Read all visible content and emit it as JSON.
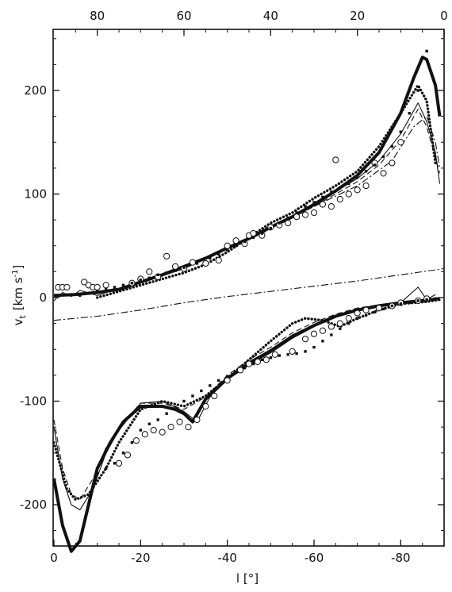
{
  "chart_data": {
    "type": "line",
    "title": "",
    "xlabel": "l [°]",
    "ylabel": "vt [km s-1]",
    "ylabel_main": "v",
    "ylabel_sub": "t",
    "ylabel_unit": "[km s",
    "ylabel_exp": "-1",
    "ylabel_close": "]",
    "xlim": [
      0,
      -90
    ],
    "ylim": [
      -240,
      250
    ],
    "top_xlim": [
      90,
      0
    ],
    "x_ticks": [
      0,
      -20,
      -40,
      -60,
      -80
    ],
    "x_tick_labels": [
      "0",
      "-20",
      "-40",
      "-60",
      "-80"
    ],
    "top_x_ticks": [
      80,
      60,
      40,
      20,
      0
    ],
    "top_x_tick_labels": [
      "80",
      "60",
      "40",
      "20",
      "0"
    ],
    "y_ticks": [
      200,
      100,
      0,
      -100,
      -200
    ],
    "y_tick_labels": [
      "200",
      "100",
      "0",
      "-100",
      "-200"
    ],
    "grid": false,
    "legend": "none",
    "series": [
      {
        "style": "thick-solid",
        "part": "upper",
        "x": [
          0,
          -5,
          -10,
          -15,
          -20,
          -25,
          -30,
          -35,
          -40,
          -45,
          -50,
          -55,
          -60,
          -65,
          -70,
          -75,
          -80,
          -83,
          -85,
          -86,
          -88,
          -89
        ],
        "y": [
          2,
          3,
          5,
          8,
          15,
          22,
          30,
          38,
          48,
          57,
          68,
          78,
          90,
          103,
          118,
          140,
          178,
          212,
          232,
          230,
          205,
          175
        ]
      },
      {
        "style": "thin-solid",
        "part": "upper",
        "x": [
          0,
          -2,
          -4,
          -6,
          -10,
          -15,
          -20,
          -30,
          -40,
          -50,
          -60,
          -70,
          -75,
          -80,
          -84,
          -86,
          -88,
          -89
        ],
        "y": [
          -3,
          5,
          1,
          7,
          2,
          9,
          14,
          28,
          47,
          67,
          90,
          115,
          132,
          158,
          188,
          170,
          140,
          110
        ]
      },
      {
        "style": "dotted",
        "part": "upper",
        "x": [
          -10,
          -15,
          -20,
          -25,
          -30,
          -35,
          -40,
          -45,
          -50,
          -55,
          -60,
          -65,
          -70,
          -75,
          -80,
          -84,
          -86,
          -88
        ],
        "y": [
          0,
          6,
          12,
          18,
          24,
          32,
          44,
          58,
          72,
          82,
          96,
          108,
          122,
          146,
          178,
          205,
          190,
          130
        ]
      },
      {
        "style": "thin-dashed",
        "part": "upper",
        "x": [
          0,
          -10,
          -20,
          -30,
          -40,
          -50,
          -60,
          -70,
          -75,
          -80,
          -84,
          -86,
          -88,
          -89
        ],
        "y": [
          2,
          4,
          14,
          28,
          47,
          66,
          88,
          112,
          128,
          152,
          182,
          165,
          135,
          120
        ]
      },
      {
        "style": "dash-dot",
        "part": "reference",
        "x": [
          0,
          -10,
          -20,
          -30,
          -40,
          -50,
          -60,
          -70,
          -80,
          -90
        ],
        "y": [
          -22,
          -18,
          -12,
          -5,
          1,
          6,
          11,
          16,
          22,
          28
        ]
      },
      {
        "style": "dash-dot",
        "part": "upper-peak",
        "x": [
          -60,
          -70,
          -78,
          -83,
          -86,
          -88,
          -89
        ],
        "y": [
          88,
          108,
          132,
          165,
          175,
          150,
          125
        ]
      },
      {
        "style": "thick-solid",
        "part": "lower",
        "x": [
          0,
          -2,
          -4,
          -6,
          -8,
          -10,
          -13,
          -16,
          -20,
          -25,
          -28,
          -30,
          -32,
          -35,
          -40,
          -45,
          -50,
          -55,
          -60,
          -65,
          -70,
          -75,
          -80,
          -85,
          -89
        ],
        "y": [
          -175,
          -220,
          -245,
          -235,
          -200,
          -165,
          -140,
          -120,
          -105,
          -105,
          -108,
          -112,
          -120,
          -98,
          -78,
          -64,
          -52,
          -38,
          -27,
          -18,
          -12,
          -8,
          -5,
          -3,
          -1
        ]
      },
      {
        "style": "thin-solid",
        "part": "lower",
        "x": [
          0,
          -2,
          -4,
          -6,
          -9,
          -12,
          -15,
          -20,
          -25,
          -30,
          -33,
          -36,
          -40,
          -45,
          -50,
          -55,
          -60,
          -65,
          -70,
          -75,
          -80,
          -84,
          -86,
          -88
        ],
        "y": [
          -125,
          -175,
          -200,
          -205,
          -185,
          -150,
          -128,
          -102,
          -100,
          -110,
          -120,
          -96,
          -77,
          -62,
          -50,
          -36,
          -26,
          -17,
          -11,
          -7,
          -5,
          10,
          -2,
          3
        ]
      },
      {
        "style": "thin-dashed",
        "part": "lower",
        "x": [
          0,
          -2,
          -4,
          -6,
          -9,
          -12,
          -15,
          -20,
          -25,
          -30,
          -35,
          -40,
          -45,
          -50,
          -55,
          -60,
          -65,
          -70,
          -80,
          -89
        ],
        "y": [
          -118,
          -165,
          -190,
          -195,
          -175,
          -145,
          -125,
          -102,
          -102,
          -108,
          -96,
          -75,
          -60,
          -48,
          -34,
          -24,
          -16,
          -10,
          -4,
          -1
        ]
      },
      {
        "style": "dotted",
        "part": "lower",
        "x": [
          0,
          -3,
          -5,
          -8,
          -12,
          -15,
          -20,
          -25,
          -30,
          -35,
          -40,
          -45,
          -50,
          -55,
          -58,
          -62,
          -66,
          -70,
          -75,
          -80,
          -86,
          -89
        ],
        "y": [
          -140,
          -185,
          -195,
          -190,
          -165,
          -140,
          -108,
          -100,
          -105,
          -95,
          -78,
          -60,
          -42,
          -25,
          -20,
          -22,
          -28,
          -20,
          -12,
          -6,
          -4,
          -2
        ]
      },
      {
        "style": "open-circles",
        "part": "upper",
        "x": [
          -1,
          -2,
          -3,
          -7,
          -8,
          -9,
          -10,
          -12,
          -18,
          -20,
          -22,
          -24,
          -26,
          -28,
          -30,
          -32,
          -35,
          -38,
          -40,
          -42,
          -44,
          -45,
          -46,
          -48,
          -50,
          -52,
          -54,
          -56,
          -58,
          -60,
          -62,
          -64,
          -65,
          -66,
          -68,
          -70,
          -72,
          -74,
          -76,
          -78,
          -80
        ],
        "y": [
          10,
          10,
          10,
          15,
          12,
          10,
          10,
          12,
          14,
          18,
          25,
          20,
          40,
          30,
          28,
          34,
          33,
          36,
          50,
          55,
          52,
          60,
          62,
          60,
          68,
          70,
          72,
          78,
          80,
          82,
          90,
          88,
          133,
          95,
          100,
          104,
          108,
          130,
          120,
          130,
          150
        ]
      },
      {
        "style": "open-circles",
        "part": "lower",
        "x": [
          -15,
          -17,
          -19,
          -21,
          -23,
          -25,
          -27,
          -29,
          -31,
          -33,
          -35,
          -37,
          -40,
          -43,
          -45,
          -47,
          -49,
          -51,
          -55,
          -58,
          -60,
          -62,
          -64,
          -66,
          -68,
          -70,
          -72,
          -75,
          -78,
          -80,
          -84,
          -86
        ],
        "y": [
          -160,
          -152,
          -138,
          -132,
          -128,
          -130,
          -125,
          -120,
          -125,
          -118,
          -105,
          -95,
          -80,
          -70,
          -64,
          -62,
          -60,
          -55,
          -52,
          -40,
          -35,
          -32,
          -28,
          -25,
          -20,
          -15,
          -12,
          -10,
          -8,
          -5,
          -3,
          -1
        ]
      },
      {
        "style": "filled-dots",
        "part": "upper",
        "x": [
          -6,
          -8,
          -10,
          -12,
          -14,
          -16,
          -18,
          -20,
          -22,
          -24,
          -26,
          -28,
          -30,
          -33,
          -36,
          -38,
          -40,
          -42,
          -44,
          -46,
          -48,
          -50,
          -52,
          -54,
          -56,
          -58,
          -60,
          -62,
          -64,
          -66,
          -68,
          -70,
          -72,
          -74,
          -76,
          -78,
          -80,
          -82,
          -84,
          -86
        ],
        "y": [
          2,
          4,
          6,
          8,
          10,
          12,
          14,
          17,
          19,
          22,
          24,
          26,
          29,
          33,
          38,
          42,
          46,
          50,
          54,
          58,
          62,
          67,
          72,
          77,
          82,
          88,
          92,
          97,
          102,
          106,
          110,
          116,
          122,
          128,
          136,
          146,
          160,
          178,
          200,
          238
        ]
      },
      {
        "style": "filled-dots",
        "part": "lower",
        "x": [
          -10,
          -12,
          -14,
          -16,
          -18,
          -20,
          -22,
          -24,
          -26,
          -28,
          -30,
          -32,
          -34,
          -36,
          -38,
          -40,
          -42,
          -44,
          -46,
          -48,
          -50,
          -52,
          -54,
          -56,
          -58,
          -60,
          -62,
          -64,
          -66,
          -68,
          -70,
          -72,
          -74,
          -76,
          -78,
          -80,
          -82,
          -84,
          -86,
          -88
        ],
        "y": [
          -170,
          -165,
          -160,
          -150,
          -140,
          -128,
          -122,
          -118,
          -112,
          -106,
          -100,
          -95,
          -90,
          -85,
          -80,
          -76,
          -72,
          -68,
          -64,
          -60,
          -58,
          -56,
          -55,
          -54,
          -52,
          -48,
          -42,
          -36,
          -30,
          -25,
          -20,
          -17,
          -14,
          -11,
          -8,
          -6,
          -5,
          -3,
          -2,
          -1
        ]
      }
    ]
  }
}
